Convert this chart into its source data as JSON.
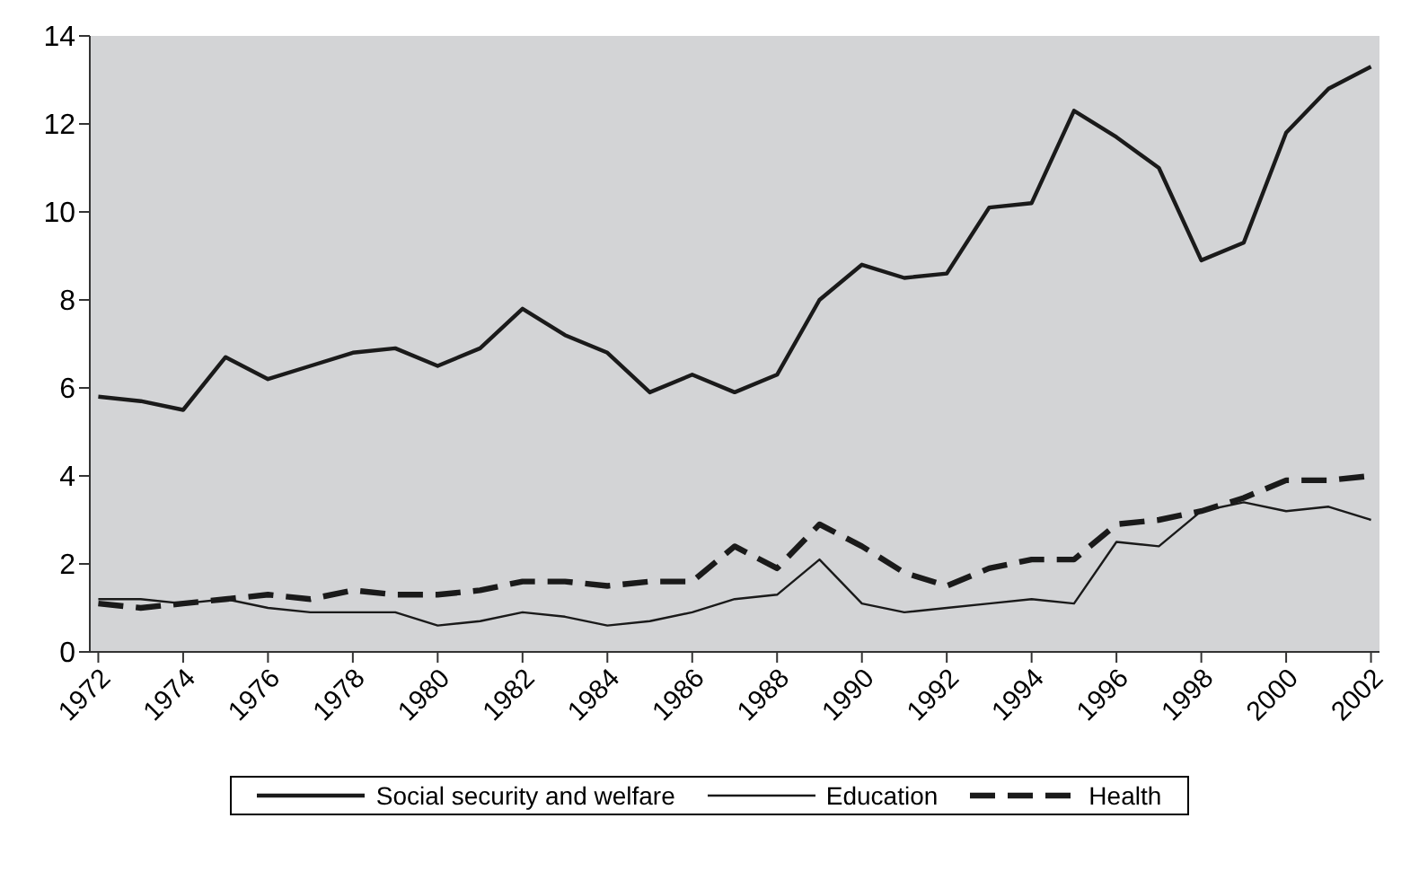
{
  "chart_data": {
    "type": "line",
    "categories": [
      "1972",
      null,
      "1974",
      null,
      "1976",
      null,
      "1978",
      null,
      "1980",
      null,
      "1982",
      null,
      "1984",
      null,
      "1986",
      null,
      "1988",
      null,
      "1990",
      null,
      "1992",
      null,
      "1994",
      null,
      "1996",
      null,
      "1998",
      null,
      "2000",
      null,
      "2002"
    ],
    "series": [
      {
        "name": "Social security and welfare",
        "color": "#1a1a1a",
        "line_style": "solid",
        "values": [
          5.8,
          5.7,
          5.5,
          6.7,
          6.2,
          6.5,
          6.8,
          6.9,
          6.5,
          6.9,
          7.8,
          7.2,
          6.8,
          5.9,
          6.3,
          5.9,
          6.3,
          8.0,
          8.8,
          8.5,
          8.6,
          10.1,
          10.2,
          12.3,
          11.7,
          11.0,
          8.9,
          9.3,
          11.8,
          12.8,
          13.3
        ]
      },
      {
        "name": "Education",
        "color": "#1a1a1a",
        "line_style": "solid",
        "values": [
          1.2,
          1.2,
          1.1,
          1.2,
          1.0,
          0.9,
          0.9,
          0.9,
          0.6,
          0.7,
          0.9,
          0.8,
          0.6,
          0.7,
          0.9,
          1.2,
          1.3,
          2.1,
          1.1,
          0.9,
          1.0,
          1.1,
          1.2,
          1.1,
          2.5,
          2.4,
          3.2,
          3.4,
          3.2,
          3.3,
          3.0
        ]
      },
      {
        "name": "Health",
        "color": "#1a1a1a",
        "line_style": "dashed",
        "values": [
          1.1,
          1.0,
          1.1,
          1.2,
          1.3,
          1.2,
          1.4,
          1.3,
          1.3,
          1.4,
          1.6,
          1.6,
          1.5,
          1.6,
          1.6,
          2.4,
          1.9,
          2.9,
          2.4,
          1.8,
          1.5,
          1.9,
          2.1,
          2.1,
          2.9,
          3.0,
          3.2,
          3.5,
          3.9,
          3.9,
          4.0
        ]
      }
    ],
    "ylim": [
      0,
      14
    ],
    "yticks": [
      0,
      2,
      4,
      6,
      8,
      10,
      12,
      14
    ],
    "grid": false,
    "legend": "bottom",
    "marker": "none"
  }
}
